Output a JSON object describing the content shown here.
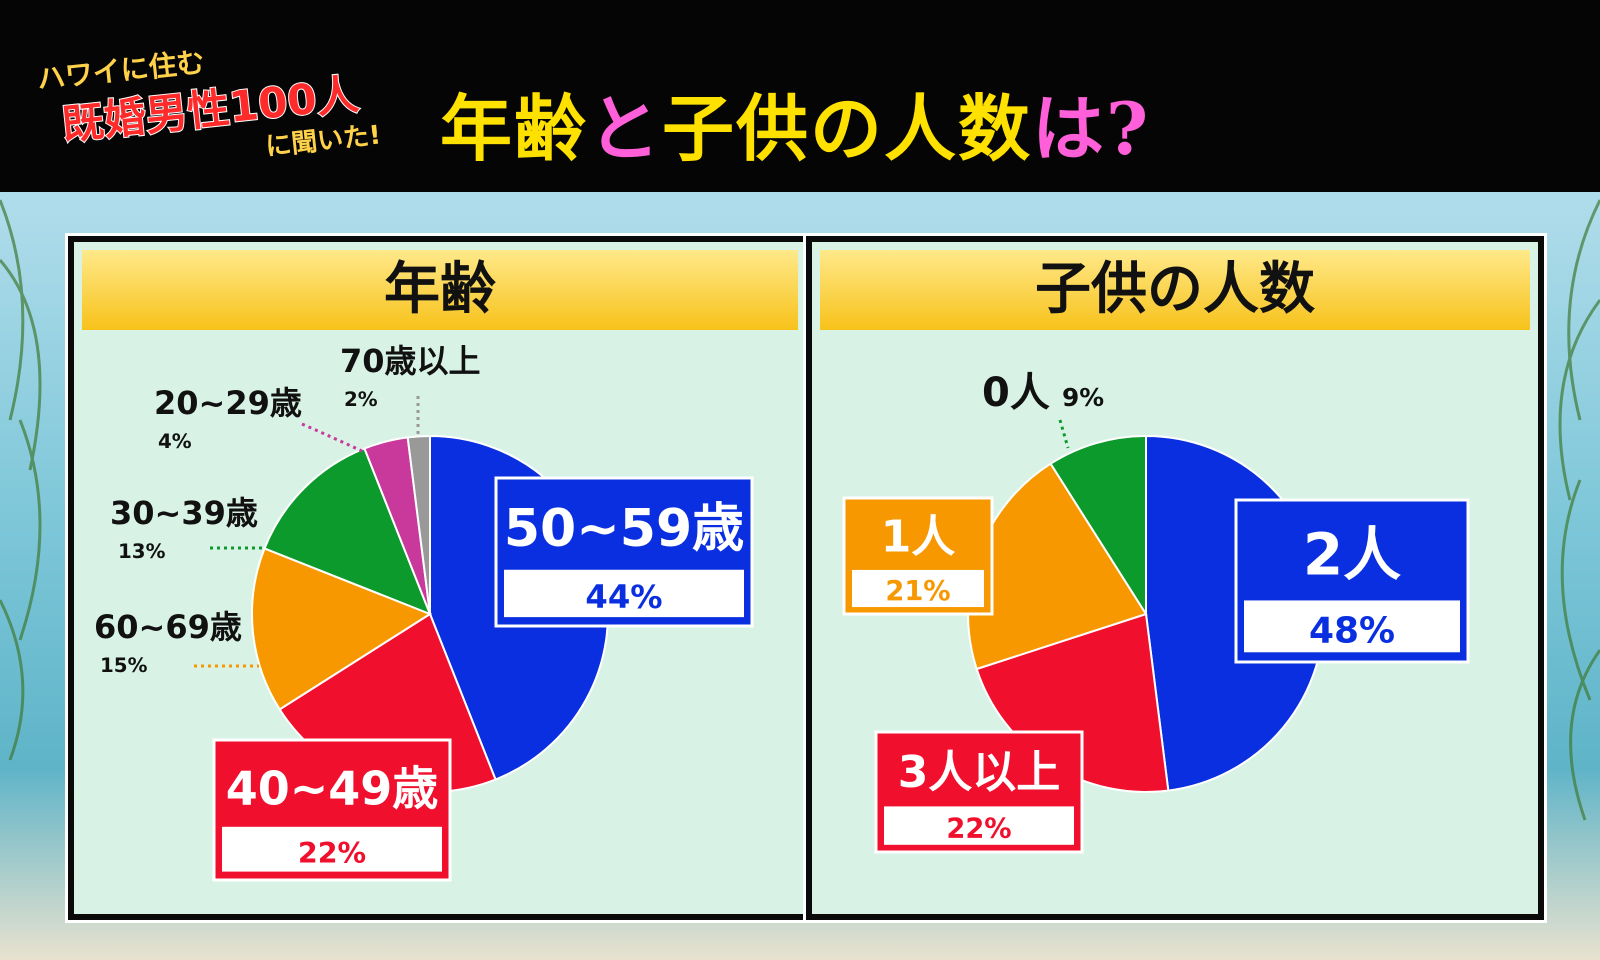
{
  "header": {
    "badge_line1": "ハワイに住む",
    "badge_line2": "既婚男性100人",
    "badge_line3": "に聞いた!",
    "title_part1": "年齢",
    "title_part2": "と",
    "title_part3": "子供の人数",
    "title_part4": "は?"
  },
  "colors": {
    "blue": "#0a2fe0",
    "red": "#f0102e",
    "orange": "#f79800",
    "green": "#0d9a2c",
    "magenta": "#c8399b",
    "gray": "#999999"
  },
  "chart_data": [
    {
      "type": "pie",
      "title": "年齢",
      "slices": [
        {
          "label": "50~59歳",
          "value": 44,
          "value_label": "44%",
          "color": "#0a2fe0"
        },
        {
          "label": "40~49歳",
          "value": 22,
          "value_label": "22%",
          "color": "#f0102e"
        },
        {
          "label": "60~69歳",
          "value": 15,
          "value_label": "15%",
          "color": "#f79800"
        },
        {
          "label": "30~39歳",
          "value": 13,
          "value_label": "13%",
          "color": "#0d9a2c"
        },
        {
          "label": "20~29歳",
          "value": 4,
          "value_label": "4%",
          "color": "#c8399b"
        },
        {
          "label": "70歳以上",
          "value": 2,
          "value_label": "2%",
          "color": "#999999"
        }
      ]
    },
    {
      "type": "pie",
      "title": "子供の人数",
      "slices": [
        {
          "label": "2人",
          "value": 48,
          "value_label": "48%",
          "color": "#0a2fe0"
        },
        {
          "label": "3人以上",
          "value": 22,
          "value_label": "22%",
          "color": "#f0102e"
        },
        {
          "label": "1人",
          "value": 21,
          "value_label": "21%",
          "color": "#f79800"
        },
        {
          "label": "0人",
          "value": 9,
          "value_label": "9%",
          "color": "#0d9a2c"
        }
      ]
    }
  ]
}
